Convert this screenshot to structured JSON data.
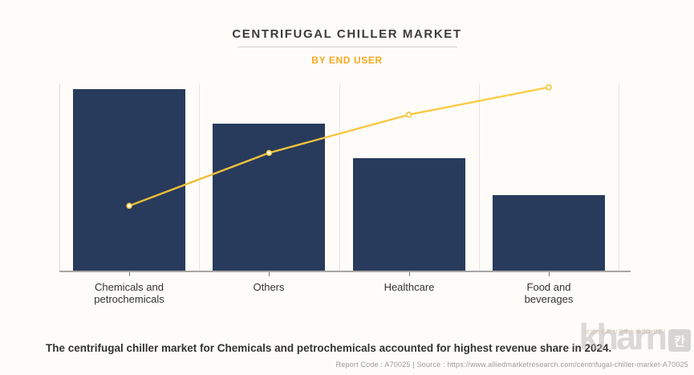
{
  "header": {
    "title": "CENTRIFUGAL CHILLER MARKET",
    "subtitle": "BY END USER"
  },
  "chart_data": {
    "type": "bar",
    "title": "CENTRIFUGAL CHILLER MARKET",
    "subtitle": "BY END USER",
    "xlabel": "",
    "ylabel": "",
    "categories": [
      "Chemicals and petrochemicals",
      "Others",
      "Healthcare",
      "Food and beverages"
    ],
    "categories_display": [
      "Chemicals and\npetrochemicals",
      "Others",
      "Healthcare",
      "Food and\nbeverages"
    ],
    "series": [
      {
        "name": "bar-series",
        "type": "bar",
        "color": "#283b5c",
        "values": [
          100,
          81,
          62,
          42
        ]
      },
      {
        "name": "trend-line",
        "type": "line",
        "color": "#f2c237",
        "values": [
          36,
          65,
          86,
          101
        ]
      }
    ],
    "ylim": [
      0,
      105
    ],
    "axis_note": "no numeric y-axis labels visible; values are relative units estimated from bar heights (tallest bar = 100)",
    "legend": "none",
    "grid": "vertical band separators only"
  },
  "caption": {
    "text": "The centrifugal chiller market for Chemicals and petrochemicals accounted for highest revenue share in 2024."
  },
  "footer": {
    "report_line": "Report Code : A70025  |  Source : https://www.alliedmarketresearch.com/centrifugal-chiller-market-A70025"
  },
  "watermark": {
    "brand": "kharn",
    "badge": "칸",
    "tagline": "냉난방공조 신재생 녹색건축 전문저널"
  },
  "colors": {
    "background": "#fdfcf9",
    "bar": "#283b5c",
    "line_start": "#edbb35",
    "line_end": "#ffd04a",
    "subtitle": "#f6a821",
    "title": "#3b3b3b",
    "gridline": "#e7e5e1",
    "axis": "#a8a6a2"
  }
}
